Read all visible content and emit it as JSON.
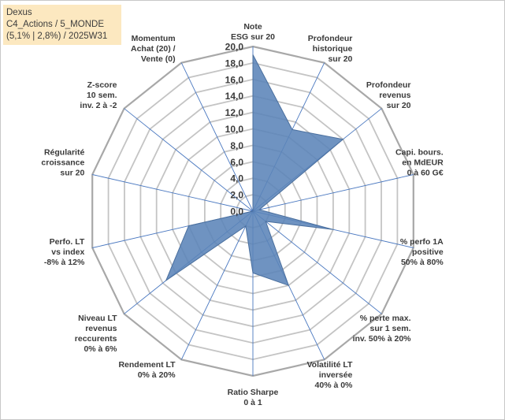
{
  "title_box": {
    "line1": "Dexus",
    "line2": "C4_Actions / 5_MONDE",
    "line3": "(5,1% | 2,8%) / 2025W31"
  },
  "colors": {
    "fill": "#5b84b8",
    "stroke": "#4a6f9e",
    "spoke": "#4a78c0",
    "grid": "#c4c4c4",
    "outer": "#a8a8a8",
    "title_bg": "#fce8c0"
  },
  "chart_data": {
    "type": "radar",
    "title": "",
    "rmin": 0,
    "rmax": 20,
    "ticks": [
      "0,0",
      "2,0",
      "4,0",
      "6,0",
      "8,0",
      "10,0",
      "12,0",
      "14,0",
      "16,0",
      "18,0",
      "20,0"
    ],
    "axes": [
      {
        "label": [
          "Note",
          "ESG sur 20"
        ]
      },
      {
        "label": [
          "Profondeur",
          "historique",
          "sur 20"
        ]
      },
      {
        "label": [
          "Profondeur",
          "revenus",
          "sur 20"
        ]
      },
      {
        "label": [
          "Capi. bours.",
          "en MdEUR",
          "0 à 60 G€"
        ]
      },
      {
        "label": [
          "% perfo 1A",
          "positive",
          "50% à 80%"
        ]
      },
      {
        "label": [
          "% perte max.",
          "sur 1 sem.",
          "inv. 50% à 20%"
        ]
      },
      {
        "label": [
          "Volatilité LT",
          "inversée",
          "40% à 0%"
        ]
      },
      {
        "label": [
          "Ratio Sharpe",
          "0 à 1"
        ]
      },
      {
        "label": [
          "Rendement LT",
          "0% à 20%"
        ]
      },
      {
        "label": [
          "Niveau LT",
          "revenus",
          "reccurents",
          "0% à 6%"
        ]
      },
      {
        "label": [
          "Perfo. LT",
          "vs index",
          "-8% à 12%"
        ]
      },
      {
        "label": [
          "Régularité",
          "croissance",
          "sur 20"
        ]
      },
      {
        "label": [
          "Z-score",
          "10 sem.",
          "inv. 2 à -2"
        ]
      },
      {
        "label": [
          "Momentum",
          "Achat (20) /",
          "Vente (0)"
        ]
      }
    ],
    "series": [
      {
        "values": [
          19,
          11,
          14,
          0.8,
          10,
          2,
          10,
          7.5,
          2,
          13.5,
          8,
          0,
          0,
          0
        ]
      }
    ]
  }
}
